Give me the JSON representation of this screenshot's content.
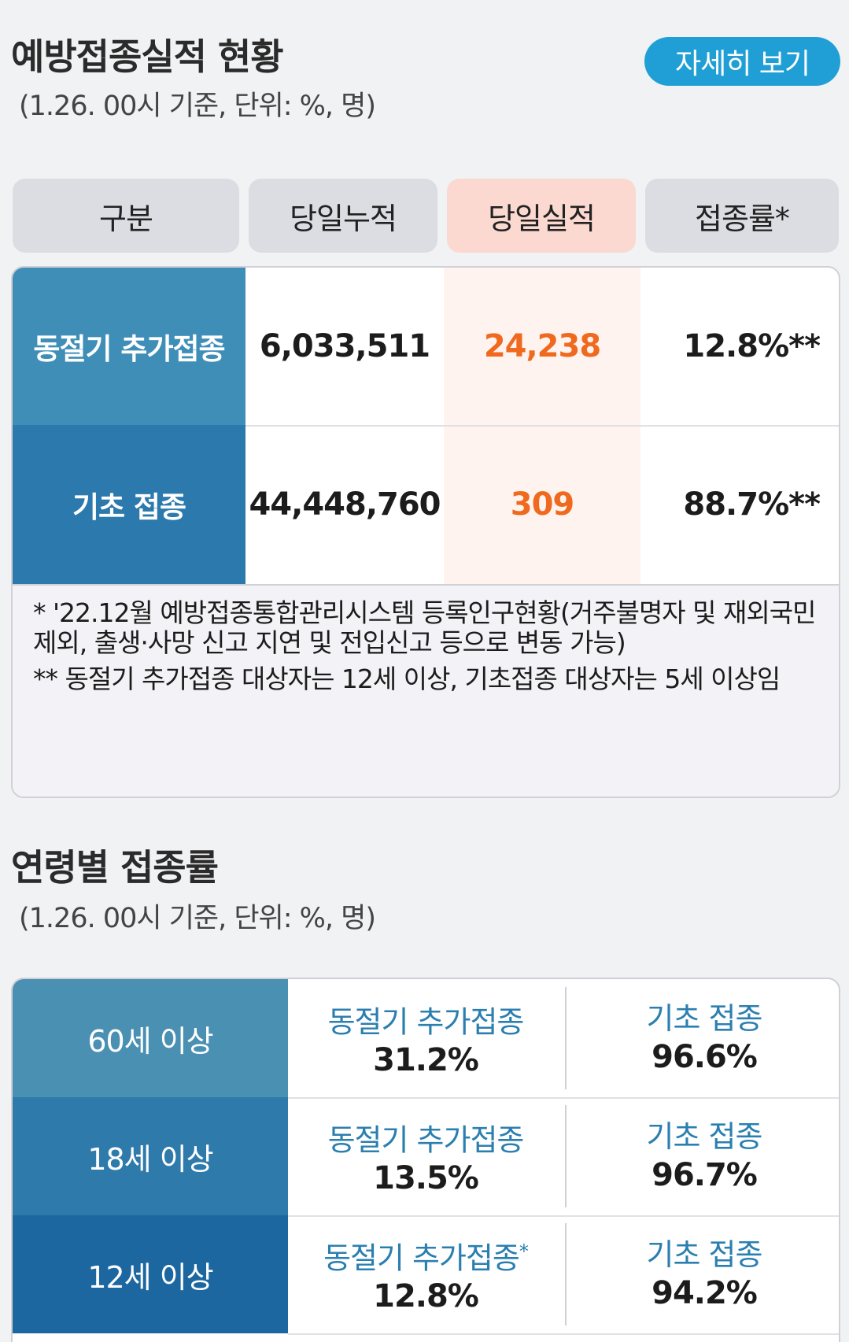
{
  "section1": {
    "title": "예방접종실적 현황",
    "subtitle": "(1.26. 00시 기준, 단위: %, 명)",
    "detail_button": "자세히 보기"
  },
  "columns": [
    "구분",
    "당일누적",
    "당일실적",
    "접종률*"
  ],
  "rows": [
    {
      "label": "동절기 추가접종",
      "cumulative": "6,033,511",
      "daily": "24,238",
      "rate": "12.8%**",
      "color": "#3f8eb8"
    },
    {
      "label": "기초 접종",
      "cumulative": "44,448,760",
      "daily": "309",
      "rate": "88.7%**",
      "color": "#2b79ad"
    }
  ],
  "notes": [
    "* '22.12월 예방접종통합관리시스템 등록인구현황(거주불명자 및 재외국민 제외, 출생·사망 신고 지연 및 전입신고 등으로 변동 가능)",
    "** 동절기 추가접종 대상자는 12세 이상, 기초접종 대상자는 5세 이상임"
  ],
  "section2": {
    "title": "연령별 접종률",
    "subtitle": "(1.26. 00시 기준, 단위: %, 명)"
  },
  "age_rows": [
    {
      "age": "60세 이상",
      "booster_label": "동절기 추가접종",
      "booster_mark": "",
      "booster": "31.2%",
      "basic_label": "기초 접종",
      "basic": "96.6%",
      "color": "#4a90b2"
    },
    {
      "age": "18세 이상",
      "booster_label": "동절기 추가접종",
      "booster_mark": "",
      "booster": "13.5%",
      "basic_label": "기초 접종",
      "basic": "96.7%",
      "color": "#2e7aab"
    },
    {
      "age": "12세 이상",
      "booster_label": "동절기 추가접종",
      "booster_mark": "*",
      "booster": "12.8%",
      "basic_label": "기초 접종",
      "basic": "94.2%",
      "color": "#1c67a0"
    }
  ],
  "colors": {
    "accent_button": "#1f9fd6",
    "highlight_header": "#fbd9d0",
    "daily_value": "#ef6a1f",
    "age_label_text": "#2b7fb0"
  }
}
